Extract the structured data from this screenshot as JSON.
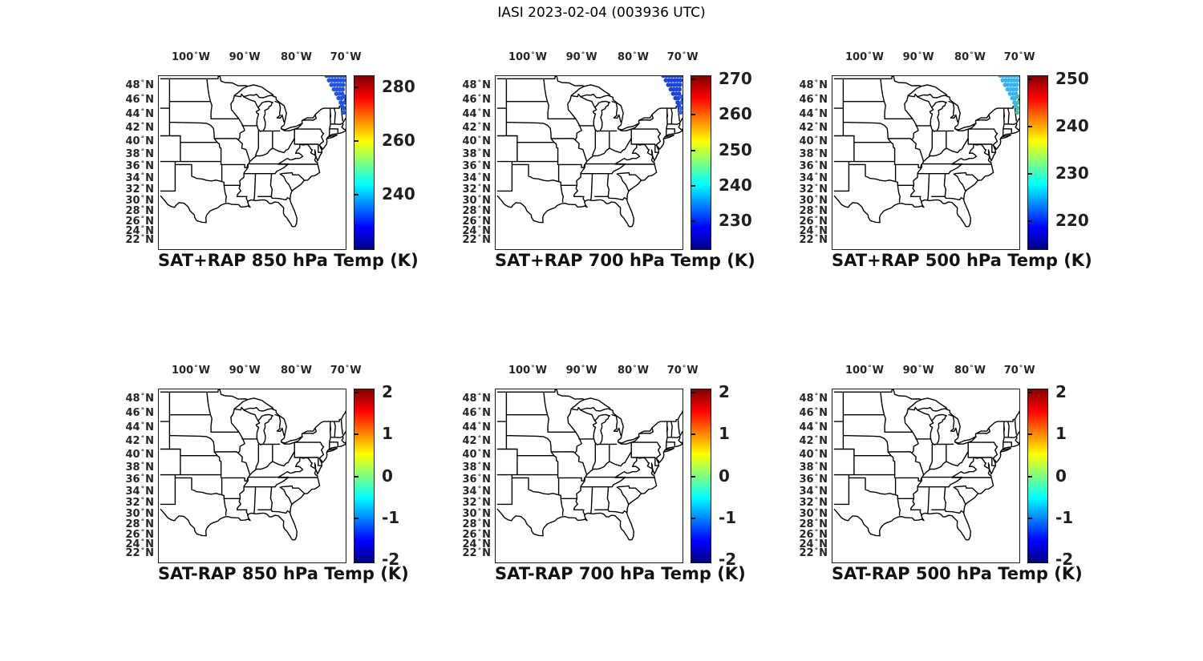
{
  "figure_title": "IASI 2023-02-04 (003936 UTC)",
  "axes": {
    "x_tick_labels": [
      "100° W",
      "90° W",
      "80° W",
      "70° W"
    ],
    "x_tick_lons": [
      -100,
      -90,
      -80,
      -70
    ],
    "y_tick_labels": [
      "48° N",
      "46° N",
      "44° N",
      "42° N",
      "40° N",
      "38° N",
      "36° N",
      "34° N",
      "32° N",
      "30° N",
      "28° N",
      "26° N",
      "24° N",
      "22° N"
    ],
    "y_tick_lats": [
      48,
      46,
      44,
      42,
      40,
      38,
      36,
      34,
      32,
      30,
      28,
      26,
      24,
      22
    ]
  },
  "colormap": "jet",
  "panels": [
    {
      "id": "sat-plus-rap-850",
      "title": "SAT+RAP 850 hPa Temp (K)",
      "row": 0,
      "col": 0,
      "colorbar": {
        "tick_values": [
          280,
          260,
          240
        ],
        "range_min": 219.9,
        "range_max": 284.2,
        "units": "K"
      },
      "observations": {
        "present": true,
        "color": "#2254df",
        "tail_color": "#2254df"
      }
    },
    {
      "id": "sat-plus-rap-700",
      "title": "SAT+RAP 700 hPa Temp (K)",
      "row": 0,
      "col": 1,
      "colorbar": {
        "tick_values": [
          270,
          260,
          250,
          240,
          230
        ],
        "range_min": 222.0,
        "range_max": 271.0,
        "units": "K"
      },
      "observations": {
        "present": true,
        "color": "#1c45d8",
        "tail_color": "#2a63ea"
      }
    },
    {
      "id": "sat-plus-rap-500",
      "title": "SAT+RAP 500 hPa Temp (K)",
      "row": 0,
      "col": 2,
      "colorbar": {
        "tick_values": [
          250,
          240,
          230,
          220
        ],
        "range_min": 214.1,
        "range_max": 250.7,
        "units": "K"
      },
      "observations": {
        "present": true,
        "color": "#38b5ec",
        "tail_color": "#45c28f"
      }
    },
    {
      "id": "sat-minus-rap-850",
      "title": "SAT-RAP 850 hPa Temp (K)",
      "row": 1,
      "col": 0,
      "colorbar": {
        "tick_values": [
          2,
          1,
          0,
          -1,
          -2
        ],
        "range_min": -2.05,
        "range_max": 2.08,
        "units": "K"
      },
      "observations": {
        "present": false
      }
    },
    {
      "id": "sat-minus-rap-700",
      "title": "SAT-RAP 700 hPa Temp (K)",
      "row": 1,
      "col": 1,
      "colorbar": {
        "tick_values": [
          2,
          1,
          0,
          -1,
          -2
        ],
        "range_min": -2.05,
        "range_max": 2.08,
        "units": "K"
      },
      "observations": {
        "present": false
      }
    },
    {
      "id": "sat-minus-rap-500",
      "title": "SAT-RAP 500 hPa Temp (K)",
      "row": 1,
      "col": 2,
      "colorbar": {
        "tick_values": [
          2,
          1,
          0,
          -1,
          -2
        ],
        "range_min": -2.05,
        "range_max": 2.08,
        "units": "K"
      },
      "observations": {
        "present": false
      }
    }
  ],
  "chart_data": [
    {
      "type": "scatter",
      "title": "SAT+RAP 850 hPa Temp (K)",
      "x_ticks": [
        "100° W",
        "90° W",
        "80° W",
        "70° W"
      ],
      "y_ticks": [
        "48° N",
        "46° N",
        "44° N",
        "42° N",
        "40° N",
        "38° N",
        "36° N",
        "34° N",
        "32° N",
        "30° N",
        "28° N",
        "26° N",
        "24° N",
        "22° N"
      ],
      "basemap": "US state boundaries, eastern two-thirds of CONUS",
      "colorbar_ticks": [
        280,
        260,
        240
      ],
      "colorbar_range": [
        219.9,
        284.2
      ],
      "units": "K",
      "colormap": "jet",
      "points": {
        "description": "IASI retrieval swath in the northeast map corner",
        "approx_lon_range": [
          -74.5,
          -70.2
        ],
        "approx_lat_range": [
          45,
          50.4
        ],
        "marker_colors": [
          "#2254df"
        ]
      }
    },
    {
      "type": "scatter",
      "title": "SAT+RAP 700 hPa Temp (K)",
      "x_ticks": [
        "100° W",
        "90° W",
        "80° W",
        "70° W"
      ],
      "y_ticks": [
        "48° N",
        "46° N",
        "44° N",
        "42° N",
        "40° N",
        "38° N",
        "36° N",
        "34° N",
        "32° N",
        "30° N",
        "28° N",
        "26° N",
        "24° N",
        "22° N"
      ],
      "basemap": "US state boundaries, eastern two-thirds of CONUS",
      "colorbar_ticks": [
        270,
        260,
        250,
        240,
        230
      ],
      "colorbar_range": [
        222.0,
        271.0
      ],
      "units": "K",
      "colormap": "jet",
      "points": {
        "description": "IASI retrieval swath in the northeast map corner",
        "approx_lon_range": [
          -74.5,
          -70.2
        ],
        "approx_lat_range": [
          45,
          50.4
        ],
        "marker_colors": [
          "#1c45d8",
          "#2a63ea"
        ]
      }
    },
    {
      "type": "scatter",
      "title": "SAT+RAP 500 hPa Temp (K)",
      "x_ticks": [
        "100° W",
        "90° W",
        "80° W",
        "70° W"
      ],
      "y_ticks": [
        "48° N",
        "46° N",
        "44° N",
        "42° N",
        "40° N",
        "38° N",
        "36° N",
        "34° N",
        "32° N",
        "30° N",
        "28° N",
        "26° N",
        "24° N",
        "22° N"
      ],
      "basemap": "US state boundaries, eastern two-thirds of CONUS",
      "colorbar_ticks": [
        250,
        240,
        230,
        220
      ],
      "colorbar_range": [
        214.1,
        250.7
      ],
      "units": "K",
      "colormap": "jet",
      "points": {
        "description": "IASI retrieval swath in the northeast map corner",
        "approx_lon_range": [
          -74.5,
          -70.2
        ],
        "approx_lat_range": [
          45,
          50.4
        ],
        "marker_colors": [
          "#38b5ec",
          "#45c28f"
        ]
      }
    },
    {
      "type": "scatter",
      "title": "SAT-RAP 850 hPa Temp (K)",
      "x_ticks": [
        "100° W",
        "90° W",
        "80° W",
        "70° W"
      ],
      "y_ticks": [
        "48° N",
        "46° N",
        "44° N",
        "42° N",
        "40° N",
        "38° N",
        "36° N",
        "34° N",
        "32° N",
        "30° N",
        "28° N",
        "26° N",
        "24° N",
        "22° N"
      ],
      "basemap": "US state boundaries, eastern two-thirds of CONUS",
      "colorbar_ticks": [
        2,
        1,
        0,
        -1,
        -2
      ],
      "colorbar_range": [
        -2.05,
        2.08
      ],
      "units": "K",
      "colormap": "jet",
      "points": null
    },
    {
      "type": "scatter",
      "title": "SAT-RAP 700 hPa Temp (K)",
      "x_ticks": [
        "100° W",
        "90° W",
        "80° W",
        "70° W"
      ],
      "y_ticks": [
        "48° N",
        "46° N",
        "44° N",
        "42° N",
        "40° N",
        "38° N",
        "36° N",
        "34° N",
        "32° N",
        "30° N",
        "28° N",
        "26° N",
        "24° N",
        "22° N"
      ],
      "basemap": "US state boundaries, eastern two-thirds of CONUS",
      "colorbar_ticks": [
        2,
        1,
        0,
        -1,
        -2
      ],
      "colorbar_range": [
        -2.05,
        2.08
      ],
      "units": "K",
      "colormap": "jet",
      "points": null
    },
    {
      "type": "scatter",
      "title": "SAT-RAP 500 hPa Temp (K)",
      "x_ticks": [
        "100° W",
        "90° W",
        "80° W",
        "70° W"
      ],
      "y_ticks": [
        "48° N",
        "46° N",
        "44° N",
        "42° N",
        "40° N",
        "38° N",
        "36° N",
        "34° N",
        "32° N",
        "30° N",
        "28° N",
        "26° N",
        "24° N",
        "22° N"
      ],
      "basemap": "US state boundaries, eastern two-thirds of CONUS",
      "colorbar_ticks": [
        2,
        1,
        0,
        -1,
        -2
      ],
      "colorbar_range": [
        -2.05,
        2.08
      ],
      "units": "K",
      "colormap": "jet",
      "points": null
    }
  ]
}
